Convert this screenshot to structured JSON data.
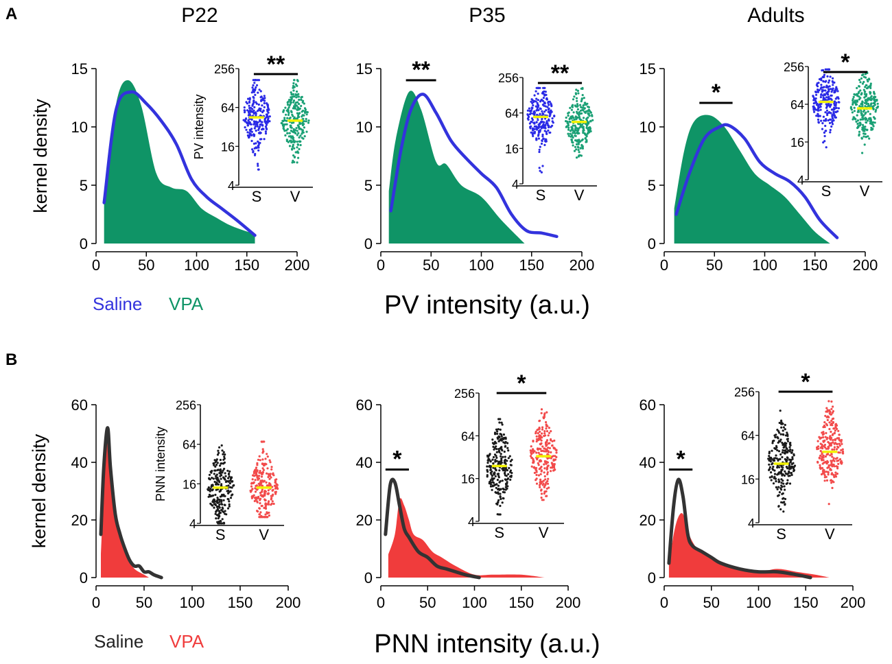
{
  "panel_labels": [
    "A",
    "B"
  ],
  "chart_data": [
    {
      "panel": "A",
      "type": "area",
      "columns": [
        "P22",
        "P35",
        "Adults"
      ],
      "ylabel": "kernel density",
      "xlabel": "PV intensity (a.u.)",
      "xlim": [
        0,
        200
      ],
      "ylim": [
        0,
        15
      ],
      "xticks": [
        "0",
        "50",
        "100",
        "150",
        "200"
      ],
      "yticks": [
        "0",
        "5",
        "10",
        "15"
      ],
      "legend": [
        {
          "name": "Saline",
          "color": "#3333dd"
        },
        {
          "name": "VPA",
          "color": "#0f9466"
        }
      ],
      "inset": {
        "ylabel": "PV intensity",
        "yticks": [
          "4",
          "16",
          "64",
          "256"
        ],
        "yscale": "log2",
        "ylim": [
          4,
          256
        ],
        "categories": [
          "S",
          "V"
        ],
        "colors": [
          "#2a2ae6",
          "#1aa075"
        ],
        "mean_color": "#f2f200"
      },
      "plots": [
        {
          "title": "P22",
          "saline": {
            "x": [
              8,
              20,
              35,
              50,
              65,
              80,
              95,
              110,
              125,
              140,
              158
            ],
            "y": [
              3.5,
              11.5,
              13.0,
              12.0,
              10.5,
              8.5,
              5.5,
              4.0,
              3.0,
              2.0,
              0.7
            ]
          },
          "vpa": {
            "x": [
              8,
              20,
              32,
              45,
              60,
              75,
              90,
              105,
              120,
              135,
              158
            ],
            "y": [
              3.5,
              12.0,
              14.0,
              11.8,
              6.0,
              4.8,
              4.5,
              3.0,
              2.2,
              1.5,
              0.8
            ]
          },
          "inset_data": {
            "saline_mean": 45,
            "vpa_mean": 40,
            "saline_range": [
              7,
              170
            ],
            "vpa_range": [
              9,
              170
            ]
          },
          "significance": "**"
        },
        {
          "title": "P35",
          "saline": {
            "x": [
              10,
              20,
              30,
              42,
              55,
              70,
              85,
              100,
              115,
              130,
              145,
              160,
              175
            ],
            "y": [
              2.8,
              8.0,
              11.5,
              12.8,
              11.2,
              8.8,
              7.3,
              6.0,
              4.8,
              2.5,
              1.1,
              0.9,
              0.6
            ]
          },
          "vpa": {
            "x": [
              8,
              15,
              28,
              40,
              55,
              65,
              80,
              100,
              120,
              143
            ],
            "y": [
              4.5,
              9.0,
              13.0,
              11.5,
              7.0,
              6.8,
              5.0,
              4.0,
              2.0,
              0.0
            ]
          },
          "inset_data": {
            "saline_mean": 55,
            "vpa_mean": 45,
            "saline_range": [
              6,
              170
            ],
            "vpa_range": [
              6,
              170
            ]
          },
          "significance": "**"
        },
        {
          "title": "Adults",
          "saline": {
            "x": [
              12,
              25,
              40,
              55,
              65,
              80,
              95,
              110,
              125,
              140,
              155,
              172
            ],
            "y": [
              2.5,
              6.0,
              9.0,
              10.0,
              10.1,
              9.0,
              7.0,
              6.0,
              5.3,
              4.0,
              2.0,
              0.5
            ]
          },
          "vpa": {
            "x": [
              10,
              20,
              30,
              45,
              60,
              75,
              90,
              105,
              120,
              135,
              150,
              165
            ],
            "y": [
              3.0,
              8.0,
              10.5,
              11.0,
              10.0,
              8.0,
              6.0,
              5.0,
              4.0,
              2.5,
              1.0,
              0.0
            ]
          },
          "inset_data": {
            "saline_mean": 70,
            "vpa_mean": 55,
            "saline_range": [
              12,
              230
            ],
            "vpa_range": [
              9,
              230
            ]
          },
          "significance": "*"
        }
      ]
    },
    {
      "panel": "B",
      "type": "area",
      "columns": [
        "P22",
        "P35",
        "Adults"
      ],
      "ylabel": "kernel density",
      "xlabel": "PNN intensity (a.u.)",
      "xlim": [
        0,
        200
      ],
      "ylim": [
        0,
        60
      ],
      "xticks": [
        "0",
        "50",
        "100",
        "150",
        "200"
      ],
      "yticks": [
        "0",
        "20",
        "40",
        "60"
      ],
      "legend": [
        {
          "name": "Saline",
          "color": "#222222"
        },
        {
          "name": "VPA",
          "color": "#f03c3c"
        }
      ],
      "inset": {
        "ylabel": "PNN intensity",
        "yticks": [
          "4",
          "16",
          "64",
          "256"
        ],
        "yscale": "log2",
        "ylim": [
          4,
          256
        ],
        "categories": [
          "S",
          "V"
        ],
        "colors": [
          "#1a1a1a",
          "#f24b4b"
        ],
        "mean_color": "#f2f200"
      },
      "plots": [
        {
          "title": "P22",
          "saline": {
            "x": [
              5,
              8,
              12,
              15,
              20,
              25,
              30,
              35,
              40,
              45,
              50,
              55,
              60,
              68
            ],
            "y": [
              15,
              38,
              52,
              38,
              22,
              15,
              10,
              6,
              4,
              4,
              2,
              2,
              1,
              0
            ]
          },
          "vpa": {
            "x": [
              5,
              8,
              12,
              16,
              20,
              25,
              30,
              35,
              40,
              50,
              55
            ],
            "y": [
              8,
              30,
              50,
              33,
              22,
              16,
              10,
              6,
              3,
              1,
              0
            ]
          },
          "inset_data": {
            "saline_mean": 14,
            "vpa_mean": 14,
            "saline_range": [
              4,
              70
            ],
            "vpa_range": [
              5,
              70
            ]
          },
          "significance": ""
        },
        {
          "title": "P35",
          "saline": {
            "x": [
              5,
              10,
              15,
              20,
              25,
              30,
              40,
              50,
              60,
              70,
              80,
              90,
              105
            ],
            "y": [
              15,
              32,
              33,
              25,
              17,
              14,
              9,
              7,
              4,
              3,
              2,
              1,
              0
            ]
          },
          "vpa": {
            "x": [
              8,
              15,
              20,
              25,
              30,
              35,
              45,
              55,
              65,
              80,
              100,
              120,
              150,
              175
            ],
            "y": [
              8,
              15,
              27,
              25,
              20,
              15,
              13,
              9,
              7,
              4,
              1,
              1,
              1,
              0
            ]
          },
          "inset_data": {
            "saline_mean": 24,
            "vpa_mean": 33,
            "saline_range": [
              5,
              110
            ],
            "vpa_range": [
              8,
              190
            ]
          },
          "significance": "*"
        },
        {
          "title": "Adults",
          "saline": {
            "x": [
              5,
              10,
              15,
              20,
              25,
              30,
              40,
              50,
              60,
              80,
              100,
              120,
              140,
              155
            ],
            "y": [
              5,
              25,
              34,
              28,
              15,
              11,
              9,
              7,
              5,
              3,
              2,
              2,
              1,
              0
            ]
          },
          "vpa": {
            "x": [
              5,
              10,
              15,
              20,
              25,
              35,
              50,
              65,
              80,
              100,
              120,
              140,
              160,
              175
            ],
            "y": [
              4,
              15,
              21,
              22,
              16,
              10,
              7,
              5,
              3,
              2,
              3,
              2,
              1,
              0
            ]
          },
          "inset_data": {
            "saline_mean": 26,
            "vpa_mean": 38,
            "saline_range": [
              4,
              140
            ],
            "vpa_range": [
              7,
              190
            ]
          },
          "significance": "*"
        }
      ]
    }
  ]
}
